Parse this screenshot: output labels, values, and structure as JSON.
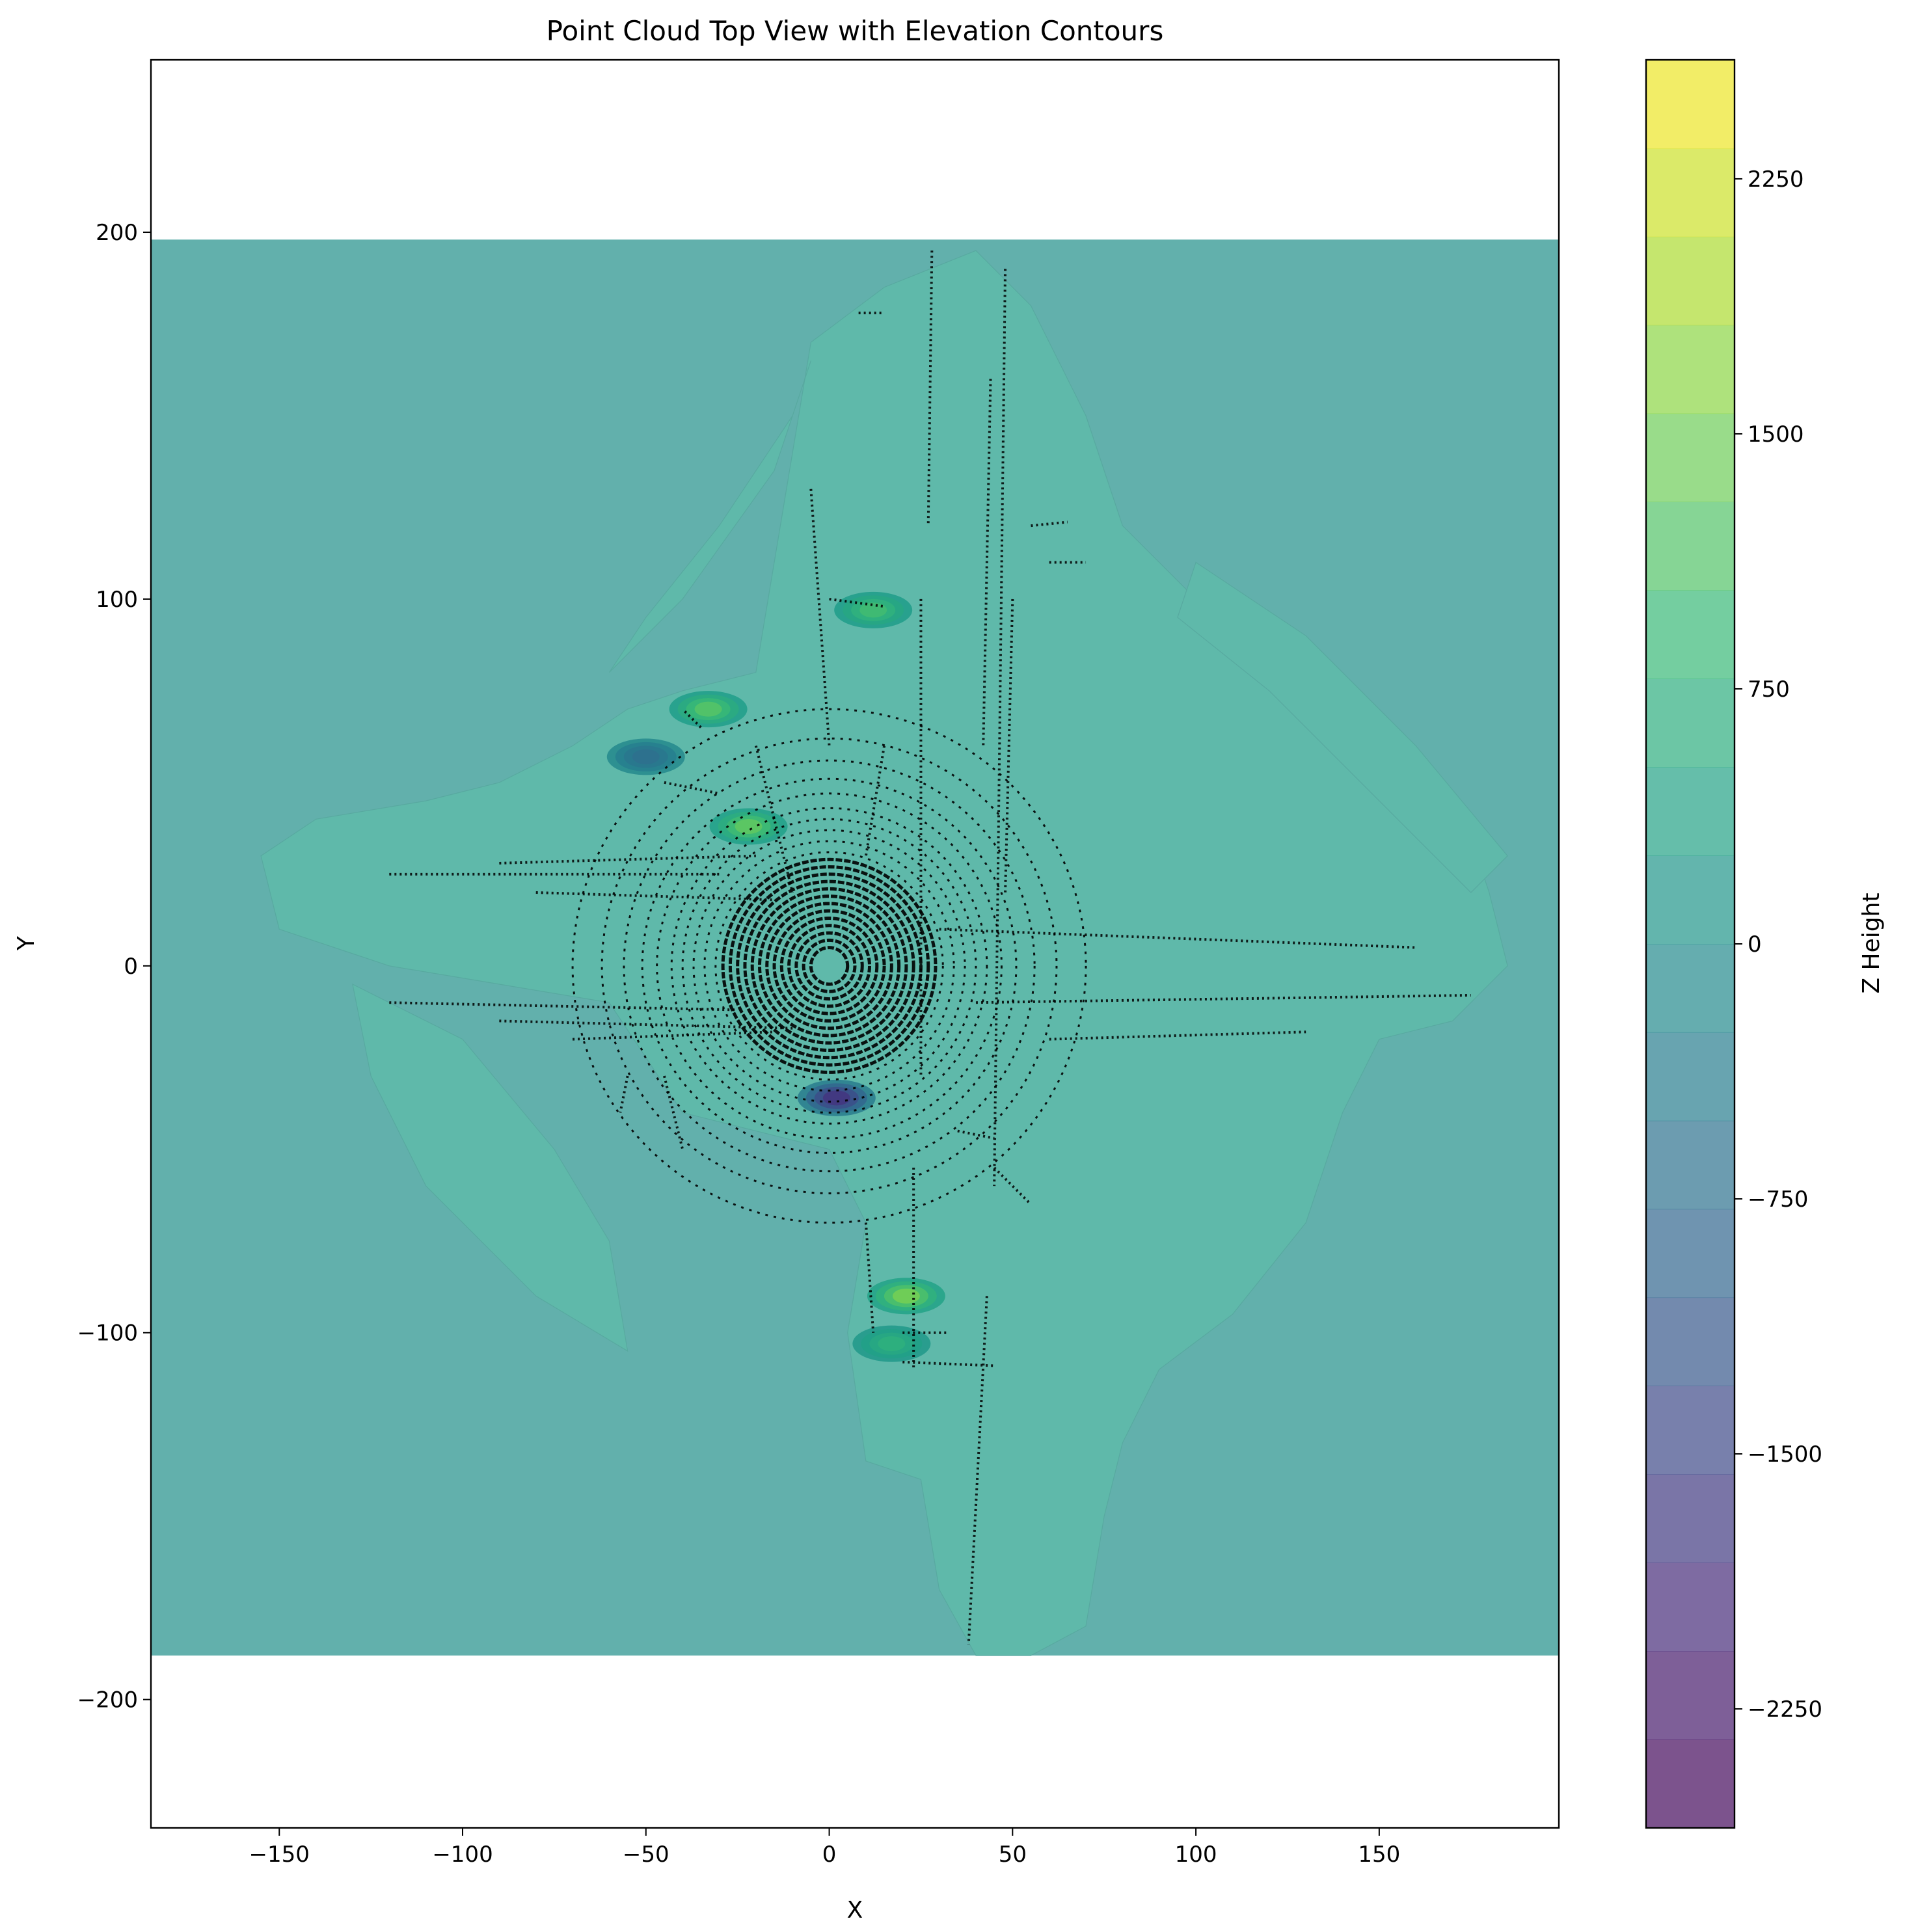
{
  "chart_data": {
    "type": "scatter",
    "subtype": "filled-contour with scatter overlay (top view)",
    "title": "Point Cloud Top View with Elevation Contours",
    "xlabel": "X",
    "ylabel": "Y",
    "xlim": [
      -185,
      199
    ],
    "ylim": [
      -235,
      247
    ],
    "xticks": [
      -150,
      -100,
      -50,
      0,
      50,
      100,
      150
    ],
    "xtick_labels": [
      "−150",
      "−100",
      "−50",
      "0",
      "50",
      "100",
      "150"
    ],
    "yticks": [
      -200,
      -100,
      0,
      100,
      200
    ],
    "ytick_labels": [
      "−200",
      "−100",
      "0",
      "100",
      "200"
    ],
    "grid": false,
    "contour": {
      "extent_x": [
        -185,
        199
      ],
      "extent_y": [
        -188,
        198
      ],
      "background_level_color": "#62b0ac",
      "band_color": "#5fb9aa",
      "band_regions": [
        {
          "name": "main-cross",
          "points": [
            [
              -20,
              80
            ],
            [
              -5,
              170
            ],
            [
              15,
              185
            ],
            [
              40,
              195
            ],
            [
              55,
              180
            ],
            [
              70,
              150
            ],
            [
              80,
              120
            ],
            [
              100,
              100
            ],
            [
              140,
              75
            ],
            [
              175,
              35
            ],
            [
              180,
              20
            ],
            [
              185,
              0
            ],
            [
              170,
              -15
            ],
            [
              150,
              -20
            ],
            [
              140,
              -40
            ],
            [
              130,
              -70
            ],
            [
              110,
              -95
            ],
            [
              90,
              -110
            ],
            [
              80,
              -130
            ],
            [
              75,
              -150
            ],
            [
              70,
              -180
            ],
            [
              55,
              -188
            ],
            [
              40,
              -188
            ],
            [
              30,
              -170
            ],
            [
              25,
              -140
            ],
            [
              10,
              -135
            ],
            [
              5,
              -100
            ],
            [
              10,
              -70
            ],
            [
              0,
              -50
            ],
            [
              -20,
              -45
            ],
            [
              -40,
              -40
            ],
            [
              -60,
              -10
            ],
            [
              -90,
              -5
            ],
            [
              -120,
              0
            ],
            [
              -150,
              10
            ],
            [
              -155,
              30
            ],
            [
              -140,
              40
            ],
            [
              -110,
              45
            ],
            [
              -90,
              50
            ],
            [
              -70,
              60
            ],
            [
              -55,
              70
            ],
            [
              -40,
              75
            ]
          ]
        },
        {
          "name": "left-lobe",
          "points": [
            [
              -130,
              -5
            ],
            [
              -100,
              -20
            ],
            [
              -75,
              -50
            ],
            [
              -60,
              -75
            ],
            [
              -55,
              -105
            ],
            [
              -80,
              -90
            ],
            [
              -110,
              -60
            ],
            [
              -125,
              -30
            ]
          ]
        },
        {
          "name": "upper-left-wing",
          "points": [
            [
              -60,
              80
            ],
            [
              -40,
              100
            ],
            [
              -15,
              135
            ],
            [
              -5,
              165
            ],
            [
              -10,
              150
            ],
            [
              -30,
              120
            ],
            [
              -50,
              95
            ]
          ]
        },
        {
          "name": "right-wing",
          "points": [
            [
              100,
              110
            ],
            [
              130,
              90
            ],
            [
              160,
              60
            ],
            [
              185,
              30
            ],
            [
              175,
              20
            ],
            [
              150,
              45
            ],
            [
              120,
              75
            ],
            [
              95,
              95
            ]
          ]
        }
      ],
      "hotspots": [
        {
          "x": -33,
          "y": 70,
          "level": 1200
        },
        {
          "x": 12,
          "y": 97,
          "level": 1000
        },
        {
          "x": -22,
          "y": 38,
          "level": 1300
        },
        {
          "x": 21,
          "y": -90,
          "level": 1500
        },
        {
          "x": 17,
          "y": -103,
          "level": 700
        },
        {
          "x": -50,
          "y": 57,
          "level": -700
        },
        {
          "x": 2,
          "y": -36,
          "level": -1800
        }
      ]
    },
    "scatter": {
      "color": "#000000",
      "rings": {
        "center": [
          0,
          0
        ],
        "radii": [
          5,
          7,
          9,
          11,
          13,
          15,
          17,
          19,
          21,
          23,
          25,
          27,
          29,
          31,
          34,
          37,
          40,
          43,
          47,
          51,
          56,
          62,
          70
        ]
      },
      "segments": [
        [
          [
            -120,
            25
          ],
          [
            -30,
            25
          ]
        ],
        [
          [
            -90,
            28
          ],
          [
            -20,
            30
          ]
        ],
        [
          [
            -80,
            20
          ],
          [
            -15,
            18
          ]
        ],
        [
          [
            -120,
            -10
          ],
          [
            -25,
            -12
          ]
        ],
        [
          [
            -90,
            -15
          ],
          [
            -10,
            -17
          ]
        ],
        [
          [
            -70,
            -20
          ],
          [
            -15,
            -18
          ]
        ],
        [
          [
            30,
            10
          ],
          [
            160,
            5
          ]
        ],
        [
          [
            40,
            -10
          ],
          [
            175,
            -8
          ]
        ],
        [
          [
            60,
            -20
          ],
          [
            130,
            -18
          ]
        ],
        [
          [
            25,
            100
          ],
          [
            25,
            -30
          ]
        ],
        [
          [
            28,
            195
          ],
          [
            27,
            120
          ]
        ],
        [
          [
            48,
            190
          ],
          [
            45,
            -60
          ]
        ],
        [
          [
            44,
            160
          ],
          [
            42,
            60
          ]
        ],
        [
          [
            50,
            100
          ],
          [
            48,
            20
          ]
        ],
        [
          [
            43,
            -90
          ],
          [
            38,
            -185
          ]
        ],
        [
          [
            23,
            -55
          ],
          [
            23,
            -110
          ]
        ],
        [
          [
            10,
            -70
          ],
          [
            12,
            -100
          ]
        ],
        [
          [
            0,
            100
          ],
          [
            15,
            98
          ]
        ],
        [
          [
            8,
            178
          ],
          [
            15,
            178
          ]
        ],
        [
          [
            20,
            -100
          ],
          [
            32,
            -100
          ]
        ],
        [
          [
            20,
            -108
          ],
          [
            45,
            -109
          ]
        ],
        [
          [
            55,
            120
          ],
          [
            65,
            121
          ]
        ],
        [
          [
            60,
            110
          ],
          [
            70,
            110
          ]
        ],
        [
          [
            -45,
            -30
          ],
          [
            -40,
            -50
          ]
        ],
        [
          [
            -55,
            -30
          ],
          [
            -57,
            -40
          ]
        ],
        [
          [
            -35,
            65
          ],
          [
            -40,
            70
          ]
        ],
        [
          [
            -45,
            50
          ],
          [
            -30,
            47
          ]
        ],
        [
          [
            -20,
            60
          ],
          [
            -10,
            20
          ]
        ],
        [
          [
            15,
            60
          ],
          [
            10,
            30
          ]
        ],
        [
          [
            -5,
            130
          ],
          [
            0,
            60
          ]
        ],
        [
          [
            35,
            -45
          ],
          [
            45,
            -47
          ]
        ],
        [
          [
            45,
            -55
          ],
          [
            55,
            -65
          ]
        ]
      ]
    },
    "colorbar": {
      "label": "Z Height",
      "range": [
        -2600,
        2600
      ],
      "ticks": [
        2250,
        1500,
        750,
        0,
        -750,
        -1500,
        -2250
      ],
      "tick_labels": [
        "2250",
        "1500",
        "750",
        "0",
        "−750",
        "−1500",
        "−2250"
      ],
      "levels": 20,
      "colormap": "viridis",
      "alpha": 0.7
    }
  }
}
